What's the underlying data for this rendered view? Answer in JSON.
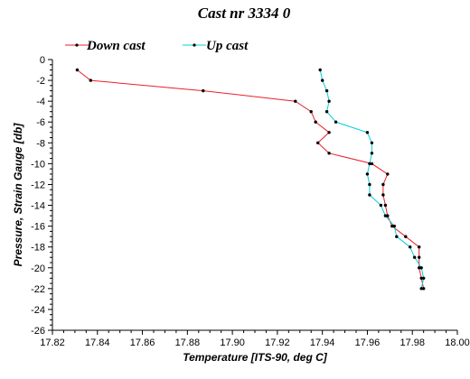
{
  "chart_data": {
    "type": "line",
    "title": "Cast nr 3334 0",
    "xlabel": "Temperature [ITS-90, deg C]",
    "ylabel": "Pressure, Strain Gauge [db]",
    "xlim": [
      17.82,
      18.0
    ],
    "ylim": [
      -26,
      0
    ],
    "x_ticks": [
      "17.82",
      "17.84",
      "17.86",
      "17.88",
      "17.90",
      "17.92",
      "17.94",
      "17.96",
      "17.98",
      "18.00"
    ],
    "y_ticks": [
      "0",
      "-2",
      "-4",
      "-6",
      "-8",
      "-10",
      "-12",
      "-14",
      "-16",
      "-18",
      "-20",
      "-22",
      "-24",
      "-26"
    ],
    "grid": false,
    "legend_position": "top",
    "series": [
      {
        "name": "Down cast",
        "color": "#e8202a",
        "points": [
          [
            17.831,
            -1.0
          ],
          [
            17.837,
            -2.0
          ],
          [
            17.887,
            -3.0
          ],
          [
            17.928,
            -4.0
          ],
          [
            17.935,
            -5.0
          ],
          [
            17.937,
            -6.0
          ],
          [
            17.943,
            -7.0
          ],
          [
            17.938,
            -8.0
          ],
          [
            17.943,
            -9.0
          ],
          [
            17.962,
            -10.0
          ],
          [
            17.969,
            -11.0
          ],
          [
            17.967,
            -12.0
          ],
          [
            17.967,
            -13.0
          ],
          [
            17.968,
            -14.0
          ],
          [
            17.969,
            -15.0
          ],
          [
            17.971,
            -16.0
          ],
          [
            17.977,
            -17.0
          ],
          [
            17.983,
            -18.0
          ],
          [
            17.983,
            -19.0
          ],
          [
            17.983,
            -20.0
          ],
          [
            17.984,
            -21.0
          ],
          [
            17.985,
            -22.0
          ]
        ]
      },
      {
        "name": "Up cast",
        "color": "#00d0d8",
        "points": [
          [
            17.939,
            -1.0
          ],
          [
            17.94,
            -2.0
          ],
          [
            17.942,
            -3.0
          ],
          [
            17.943,
            -4.0
          ],
          [
            17.942,
            -5.0
          ],
          [
            17.946,
            -6.0
          ],
          [
            17.96,
            -7.0
          ],
          [
            17.962,
            -8.0
          ],
          [
            17.962,
            -9.0
          ],
          [
            17.961,
            -10.0
          ],
          [
            17.96,
            -11.0
          ],
          [
            17.961,
            -12.0
          ],
          [
            17.961,
            -13.0
          ],
          [
            17.966,
            -14.0
          ],
          [
            17.968,
            -15.0
          ],
          [
            17.972,
            -16.0
          ],
          [
            17.973,
            -17.0
          ],
          [
            17.979,
            -18.0
          ],
          [
            17.981,
            -19.0
          ],
          [
            17.984,
            -20.0
          ],
          [
            17.985,
            -21.0
          ],
          [
            17.984,
            -22.0
          ]
        ]
      }
    ]
  }
}
